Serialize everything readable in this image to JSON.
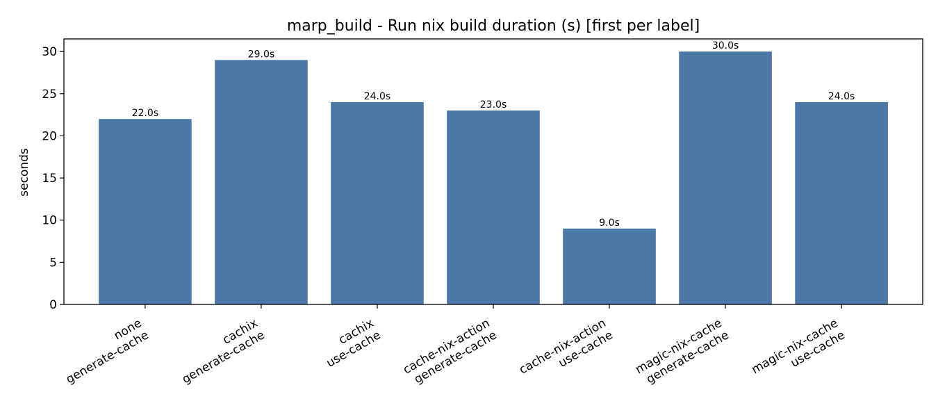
{
  "chart_data": {
    "type": "bar",
    "title": "marp_build - Run nix build duration (s) [first per label]",
    "xlabel": "",
    "ylabel": "seconds",
    "categories": [
      [
        "none",
        "generate-cache"
      ],
      [
        "cachix",
        "generate-cache"
      ],
      [
        "cachix",
        "use-cache"
      ],
      [
        "cache-nix-action",
        "generate-cache"
      ],
      [
        "cache-nix-action",
        "use-cache"
      ],
      [
        "magic-nix-cache",
        "generate-cache"
      ],
      [
        "magic-nix-cache",
        "use-cache"
      ]
    ],
    "values": [
      22.0,
      29.0,
      24.0,
      23.0,
      9.0,
      30.0,
      24.0
    ],
    "value_labels": [
      "22.0s",
      "29.0s",
      "24.0s",
      "23.0s",
      "9.0s",
      "30.0s",
      "24.0s"
    ],
    "yticks": [
      0,
      5,
      10,
      15,
      20,
      25,
      30
    ],
    "ylim": [
      0,
      31.5
    ],
    "grid": false,
    "bar_color": "#4c78a8"
  }
}
